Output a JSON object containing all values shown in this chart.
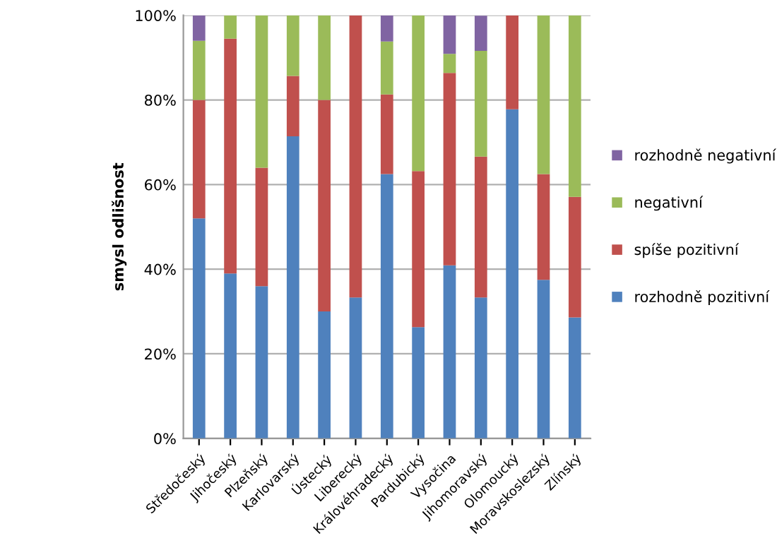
{
  "chart_data": {
    "type": "bar",
    "stacked": true,
    "ylabel": "smysl odlišnost",
    "categories": [
      "Středočeský",
      "Jihočeský",
      "Plzeňský",
      "Karlovarský",
      "Ústecký",
      "Liberecký",
      "Královéhradecký",
      "Pardubický",
      "Vysočina",
      "Jihomoravský",
      "Olomoucký",
      "Moravskoslezský",
      "Zlínský"
    ],
    "series": [
      {
        "name": "rozhodně pozitivní",
        "color": "#4f81bd",
        "values": [
          52,
          39,
          36,
          71.4,
          30,
          33.3,
          62.5,
          26.3,
          40.9,
          33.3,
          77.8,
          37.5,
          28.6
        ]
      },
      {
        "name": "spíše pozitivní",
        "color": "#c0504d",
        "values": [
          28,
          55.5,
          28,
          14.3,
          50,
          66.7,
          18.8,
          36.9,
          45.5,
          33.3,
          22.2,
          25,
          28.5
        ]
      },
      {
        "name": "negativní",
        "color": "#9bbb59",
        "values": [
          14,
          5.5,
          36,
          14.3,
          20,
          0,
          12.5,
          36.8,
          4.5,
          25,
          0,
          37.5,
          42.9
        ]
      },
      {
        "name": "rozhodně negativní",
        "color": "#8064a2",
        "values": [
          6,
          0,
          0,
          0,
          0,
          0,
          6.2,
          0,
          9.1,
          8.3,
          0,
          0,
          0
        ]
      }
    ],
    "ylim": [
      0,
      100
    ],
    "yticks": [
      {
        "value": 0,
        "label": "0%"
      },
      {
        "value": 20,
        "label": "20%"
      },
      {
        "value": 40,
        "label": "40%"
      },
      {
        "value": 60,
        "label": "60%"
      },
      {
        "value": 80,
        "label": "80%"
      },
      {
        "value": 100,
        "label": "100%"
      }
    ],
    "grid": "y",
    "legend": "right"
  }
}
